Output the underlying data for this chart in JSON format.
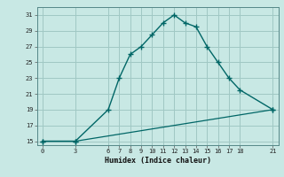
{
  "xlabel": "Humidex (Indice chaleur)",
  "background_color": "#c8e8e4",
  "grid_color": "#a0c8c4",
  "line_color": "#006666",
  "curve1_x": [
    0,
    3,
    6,
    7,
    8,
    9,
    10,
    11,
    12,
    13,
    14,
    15,
    16,
    17,
    18,
    21
  ],
  "curve1_y": [
    15,
    15,
    19,
    23,
    26,
    27,
    28.5,
    30,
    31,
    30,
    29.5,
    27,
    25,
    23,
    21.5,
    19
  ],
  "curve2_x": [
    0,
    3,
    21
  ],
  "curve2_y": [
    15,
    15,
    19
  ],
  "xticks": [
    0,
    3,
    6,
    7,
    8,
    9,
    10,
    11,
    12,
    13,
    14,
    15,
    16,
    17,
    18,
    21
  ],
  "yticks": [
    15,
    17,
    19,
    21,
    23,
    25,
    27,
    29,
    31
  ],
  "xlim": [
    -0.5,
    21.5
  ],
  "ylim": [
    14.5,
    32.0
  ]
}
